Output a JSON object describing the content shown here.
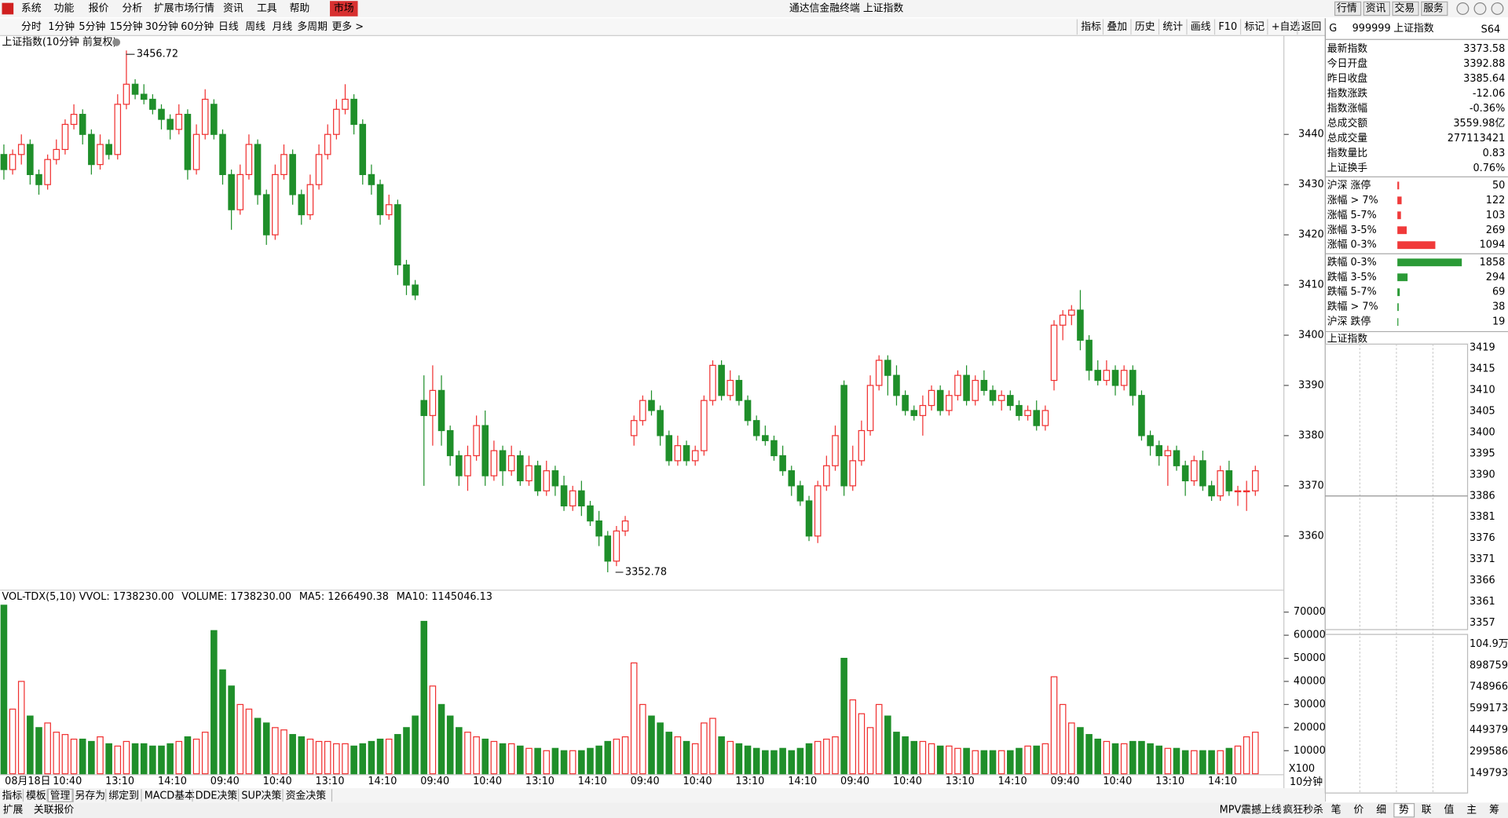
{
  "title_bar": {
    "menus": [
      "系统",
      "功能",
      "报价",
      "分析",
      "扩展市场行情",
      "资讯",
      "工具",
      "帮助"
    ],
    "market": "市场",
    "app_title": "通达信金融终端 上证指数",
    "buttons": [
      "行情",
      "资讯",
      "交易",
      "服务"
    ]
  },
  "period_bar": {
    "items": [
      "分时",
      "1分钟",
      "5分钟",
      "15分钟",
      "30分钟",
      "60分钟",
      "日线",
      "周线",
      "月线",
      "多周期"
    ],
    "more": "更多 >",
    "tools": [
      "指标",
      "叠加",
      "历史",
      "统计",
      "画线",
      "F10",
      "标记",
      "+自选",
      "返回"
    ]
  },
  "main_chart": {
    "type": "candlestick",
    "title": "上证指数(10分钟 前复权)",
    "ylim": [
      3349.4,
      3459.5
    ],
    "yticks": [
      3360,
      3370,
      3380,
      3390,
      3400,
      3410,
      3420,
      3430,
      3440
    ],
    "up_color": "#f03030",
    "down_color": "#1f8f2a",
    "high_label": 3456.72,
    "low_label": 3352.78,
    "candles": [
      [
        3436,
        3438,
        3431,
        3433
      ],
      [
        3433,
        3437,
        3432,
        3436
      ],
      [
        3436,
        3440,
        3434,
        3438
      ],
      [
        3438,
        3439,
        3430,
        3432
      ],
      [
        3432,
        3433,
        3428,
        3430
      ],
      [
        3430,
        3436,
        3429,
        3435
      ],
      [
        3435,
        3439,
        3434,
        3437
      ],
      [
        3437,
        3443,
        3436,
        3442
      ],
      [
        3442,
        3446,
        3441,
        3444
      ],
      [
        3444,
        3445,
        3438,
        3440
      ],
      [
        3440,
        3441,
        3432,
        3434
      ],
      [
        3434,
        3440,
        3433,
        3438
      ],
      [
        3438,
        3439,
        3435,
        3436
      ],
      [
        3436,
        3448,
        3435,
        3446
      ],
      [
        3446,
        3456.72,
        3445,
        3450
      ],
      [
        3450,
        3451,
        3447,
        3448
      ],
      [
        3448,
        3450,
        3446,
        3447
      ],
      [
        3447,
        3448,
        3444,
        3445
      ],
      [
        3445,
        3446,
        3441,
        3443
      ],
      [
        3443,
        3444,
        3439,
        3441
      ],
      [
        3441,
        3446,
        3440,
        3444
      ],
      [
        3444,
        3445,
        3431,
        3433
      ],
      [
        3433,
        3442,
        3432,
        3440
      ],
      [
        3440,
        3449,
        3439,
        3447
      ],
      [
        3446,
        3447,
        3439,
        3440
      ],
      [
        3440,
        3441,
        3430,
        3432
      ],
      [
        3432,
        3433,
        3421,
        3425
      ],
      [
        3425,
        3434,
        3424,
        3432
      ],
      [
        3432,
        3440,
        3431,
        3438
      ],
      [
        3438,
        3439,
        3426,
        3428
      ],
      [
        3428,
        3429,
        3418,
        3420
      ],
      [
        3420,
        3434,
        3419,
        3432
      ],
      [
        3432,
        3438,
        3431,
        3436
      ],
      [
        3436,
        3437,
        3426,
        3428
      ],
      [
        3428,
        3429,
        3422,
        3424
      ],
      [
        3424,
        3432,
        3423,
        3430
      ],
      [
        3430,
        3438,
        3429,
        3436
      ],
      [
        3436,
        3442,
        3435,
        3440
      ],
      [
        3440,
        3447,
        3439,
        3445
      ],
      [
        3445,
        3450,
        3444,
        3447
      ],
      [
        3447,
        3448,
        3440,
        3442
      ],
      [
        3442,
        3443,
        3430,
        3432
      ],
      [
        3432,
        3434,
        3428,
        3430
      ],
      [
        3430,
        3431,
        3422,
        3424
      ],
      [
        3424,
        3428,
        3423,
        3426
      ],
      [
        3426,
        3427,
        3412,
        3414
      ],
      [
        3414,
        3415,
        3408,
        3410
      ],
      [
        3410,
        3411,
        3407,
        3408
      ],
      [
        3387,
        3392,
        3370,
        3384
      ],
      [
        3384,
        3394,
        3378,
        3389
      ],
      [
        3389,
        3392,
        3378,
        3381
      ],
      [
        3381,
        3382,
        3374,
        3376
      ],
      [
        3376,
        3377,
        3370,
        3372
      ],
      [
        3372,
        3378,
        3369,
        3376
      ],
      [
        3376,
        3384,
        3375,
        3382
      ],
      [
        3382,
        3385,
        3370,
        3372
      ],
      [
        3372,
        3379,
        3371,
        3377
      ],
      [
        3377,
        3378,
        3370,
        3373
      ],
      [
        3373,
        3378,
        3372,
        3376
      ],
      [
        3376,
        3377,
        3370,
        3371
      ],
      [
        3371,
        3376,
        3370,
        3374
      ],
      [
        3374,
        3375,
        3368,
        3369
      ],
      [
        3369,
        3375,
        3368,
        3373
      ],
      [
        3373,
        3374,
        3368,
        3370
      ],
      [
        3370,
        3372,
        3365,
        3366
      ],
      [
        3366,
        3370,
        3365,
        3369
      ],
      [
        3369,
        3371,
        3364,
        3366
      ],
      [
        3366,
        3367,
        3362,
        3363
      ],
      [
        3363,
        3365,
        3358,
        3360
      ],
      [
        3360,
        3361,
        3352.78,
        3355
      ],
      [
        3355,
        3362,
        3354,
        3361
      ],
      [
        3361,
        3364,
        3360,
        3363
      ],
      [
        3380,
        3384,
        3378,
        3383
      ],
      [
        3383,
        3388,
        3382,
        3387
      ],
      [
        3387,
        3389,
        3384,
        3385
      ],
      [
        3385,
        3386,
        3378,
        3380
      ],
      [
        3380,
        3381,
        3374,
        3375
      ],
      [
        3375,
        3380,
        3374,
        3378
      ],
      [
        3378,
        3379,
        3374,
        3375
      ],
      [
        3375,
        3378,
        3374,
        3377
      ],
      [
        3377,
        3388,
        3376,
        3387
      ],
      [
        3387,
        3395,
        3386,
        3394
      ],
      [
        3394,
        3395,
        3387,
        3388
      ],
      [
        3388,
        3393,
        3387,
        3391
      ],
      [
        3391,
        3392,
        3386,
        3387
      ],
      [
        3387,
        3388,
        3382,
        3383
      ],
      [
        3383,
        3384,
        3379,
        3380
      ],
      [
        3380,
        3382,
        3378,
        3379
      ],
      [
        3379,
        3380,
        3375,
        3376
      ],
      [
        3376,
        3378,
        3372,
        3373
      ],
      [
        3373,
        3374,
        3368,
        3370
      ],
      [
        3370,
        3371,
        3366,
        3367
      ],
      [
        3367,
        3368,
        3359,
        3360
      ],
      [
        3360,
        3371,
        3358.6,
        3370
      ],
      [
        3370,
        3376,
        3369,
        3374
      ],
      [
        3374,
        3382,
        3373,
        3380
      ],
      [
        3390,
        3391,
        3368,
        3370
      ],
      [
        3370,
        3378,
        3369,
        3375
      ],
      [
        3375,
        3383,
        3374,
        3381
      ],
      [
        3381,
        3392,
        3380,
        3390
      ],
      [
        3390,
        3396,
        3389,
        3395
      ],
      [
        3395,
        3396,
        3388,
        3392
      ],
      [
        3392,
        3394,
        3386,
        3388
      ],
      [
        3388,
        3389,
        3384,
        3385
      ],
      [
        3385,
        3386,
        3383,
        3384
      ],
      [
        3384,
        3388,
        3380,
        3386
      ],
      [
        3386,
        3390,
        3385,
        3389
      ],
      [
        3389,
        3390,
        3384,
        3385
      ],
      [
        3385,
        3389,
        3384,
        3388
      ],
      [
        3388,
        3393,
        3387,
        3392
      ],
      [
        3392,
        3394,
        3386,
        3387
      ],
      [
        3387,
        3392,
        3386,
        3391
      ],
      [
        3391,
        3393,
        3388,
        3389
      ],
      [
        3389,
        3390,
        3386,
        3387
      ],
      [
        3387,
        3389,
        3385,
        3388
      ],
      [
        3388,
        3389,
        3385,
        3386
      ],
      [
        3386,
        3387,
        3383,
        3384
      ],
      [
        3384,
        3386,
        3383,
        3385
      ],
      [
        3385,
        3387,
        3381,
        3382
      ],
      [
        3382,
        3386,
        3381,
        3385
      ],
      [
        3391,
        3403,
        3389,
        3402
      ],
      [
        3402,
        3405,
        3399,
        3404
      ],
      [
        3404,
        3406,
        3402,
        3405
      ],
      [
        3405,
        3409,
        3397,
        3399
      ],
      [
        3399,
        3400,
        3391,
        3393
      ],
      [
        3393,
        3395,
        3390,
        3391
      ],
      [
        3391,
        3395,
        3390,
        3393
      ],
      [
        3393,
        3394,
        3388,
        3390
      ],
      [
        3390,
        3394,
        3389,
        3393
      ],
      [
        3393,
        3394,
        3386,
        3388
      ],
      [
        3388,
        3389,
        3379,
        3380
      ],
      [
        3380,
        3381,
        3376,
        3378
      ],
      [
        3378,
        3379,
        3374,
        3376
      ],
      [
        3376,
        3378,
        3370,
        3377
      ],
      [
        3377,
        3378,
        3373,
        3374
      ],
      [
        3374,
        3375,
        3368,
        3371
      ],
      [
        3371,
        3376,
        3370,
        3375
      ],
      [
        3375,
        3377,
        3369,
        3370
      ],
      [
        3370,
        3371,
        3367,
        3368
      ],
      [
        3368,
        3374,
        3367,
        3373
      ],
      [
        3373,
        3375,
        3368,
        3369
      ],
      [
        3369,
        3370,
        3366,
        3369
      ],
      [
        3369,
        3371,
        3365,
        3369
      ],
      [
        3369,
        3374,
        3368,
        3373
      ]
    ],
    "xlabels": [
      "08月18日",
      "10:40",
      "13:10",
      "14:10",
      "09:40",
      "10:40",
      "13:10",
      "14:10",
      "09:40",
      "10:40",
      "13:10",
      "14:10",
      "09:40",
      "10:40",
      "13:10",
      "14:10",
      "09:40",
      "10:40",
      "13:10",
      "14:10",
      "09:40",
      "10:40",
      "13:10",
      "14:10"
    ]
  },
  "volume_chart": {
    "type": "bar",
    "legend": [
      {
        "text": "VOL-TDX(5,10) VVOL: 1738230.00",
        "color": "#000000"
      },
      {
        "text": "VOLUME: 1738230.00",
        "color": "#1a6fd0"
      },
      {
        "text": "MA5: 1266490.38",
        "color": "#1a6fd0"
      },
      {
        "text": "MA10: 1145046.13",
        "color": "#a0209a"
      }
    ],
    "ylim": [
      0,
      77000
    ],
    "yticks": [
      10000,
      20000,
      30000,
      40000,
      50000,
      60000,
      70000
    ],
    "scale_label": "X100",
    "values": [
      73000,
      28000,
      40000,
      25000,
      20000,
      22000,
      18000,
      17000,
      15000,
      15000,
      14000,
      16000,
      13000,
      12000,
      14000,
      13000,
      13000,
      12000,
      12000,
      13000,
      14000,
      16000,
      15000,
      18000,
      62000,
      45000,
      38000,
      30000,
      28000,
      24000,
      22000,
      20000,
      19000,
      17000,
      16000,
      15000,
      14000,
      14000,
      13000,
      13000,
      12000,
      13000,
      14000,
      15000,
      15000,
      17000,
      20000,
      25000,
      66000,
      38000,
      30000,
      25000,
      20000,
      18000,
      16000,
      15000,
      14000,
      13000,
      13000,
      12000,
      11000,
      11000,
      10000,
      11000,
      10000,
      10000,
      10000,
      11000,
      12000,
      14000,
      15000,
      16000,
      48000,
      30000,
      25000,
      22000,
      18000,
      16000,
      14000,
      13000,
      22000,
      24000,
      16000,
      14000,
      13000,
      12000,
      11000,
      10000,
      10000,
      11000,
      10000,
      11000,
      13000,
      14000,
      15000,
      16000,
      50000,
      32000,
      26000,
      20000,
      30000,
      25000,
      18000,
      16000,
      14000,
      14000,
      13000,
      12000,
      12000,
      11000,
      11000,
      10000,
      10000,
      10000,
      10000,
      10000,
      11000,
      12000,
      12000,
      13000,
      42000,
      30000,
      22000,
      20000,
      17000,
      15000,
      14000,
      13000,
      13000,
      14000,
      14000,
      13000,
      12000,
      11000,
      11000,
      10000,
      10000,
      10000,
      10000,
      10000,
      11000,
      12000,
      16000,
      18000
    ]
  },
  "quote": {
    "flag": "G",
    "code": "999999",
    "name": "上证指数",
    "tag": "S64",
    "stats": [
      {
        "label": "最新指数",
        "value": "3373.58",
        "color": "#1f8f2a"
      },
      {
        "label": "今日开盘",
        "value": "3392.88",
        "color": "#e02020"
      },
      {
        "label": "昨日收盘",
        "value": "3385.64",
        "color": "#000000"
      },
      {
        "label": "指数涨跌",
        "value": "-12.06",
        "color": "#1f8f2a"
      },
      {
        "label": "指数涨幅",
        "value": "-0.36%",
        "color": "#1f8f2a"
      },
      {
        "label": "总成交额",
        "value": "3559.98亿",
        "color": "#000000"
      },
      {
        "label": "总成交量",
        "value": "277113421",
        "color": "#000000"
      },
      {
        "label": "指数量比",
        "value": "0.83",
        "color": "#1f8f2a"
      },
      {
        "label": "上证换手",
        "value": "0.76%",
        "color": "#000000"
      }
    ],
    "breadth_up": [
      {
        "label": "沪深 涨停",
        "value": 50
      },
      {
        "label": "涨幅 > 7%",
        "value": 122
      },
      {
        "label": "涨幅 5-7%",
        "value": 103
      },
      {
        "label": "涨幅 3-5%",
        "value": 269
      },
      {
        "label": "涨幅 0-3%",
        "value": 1094
      }
    ],
    "breadth_down": [
      {
        "label": "跌幅 0-3%",
        "value": 1858
      },
      {
        "label": "跌幅 3-5%",
        "value": 294
      },
      {
        "label": "跌幅 5-7%",
        "value": 69
      },
      {
        "label": "跌幅 > 7%",
        "value": 38
      },
      {
        "label": "沪深 跌停",
        "value": 19
      }
    ],
    "up_color": "#f03a3a",
    "down_color": "#2a9a36"
  },
  "mini_chart": {
    "title": "上证指数",
    "price_ticks": [
      "3419",
      "3415",
      "3410",
      "3405",
      "3400",
      "3395",
      "3390",
      "3386",
      "3381",
      "3376",
      "3371",
      "3366",
      "3361",
      "3357"
    ],
    "volume_ticks": [
      "104.9万",
      "898759",
      "748966",
      "599173",
      "449379",
      "299586",
      "149793"
    ]
  },
  "bottom_tabs": {
    "items": [
      "指标",
      "模板",
      "管理",
      "另存为",
      "绑定到",
      "MACD基本",
      "DDE决策",
      "SUP决策",
      "资金决策"
    ],
    "period": "10分钟"
  },
  "status_bar": {
    "left": [
      "扩展",
      "关联报价"
    ],
    "right": [
      "MPV震撼上线",
      "疯狂秒杀"
    ],
    "icons": [
      "笔",
      "价",
      "细",
      "势",
      "联",
      "值",
      "主",
      "筹"
    ]
  }
}
